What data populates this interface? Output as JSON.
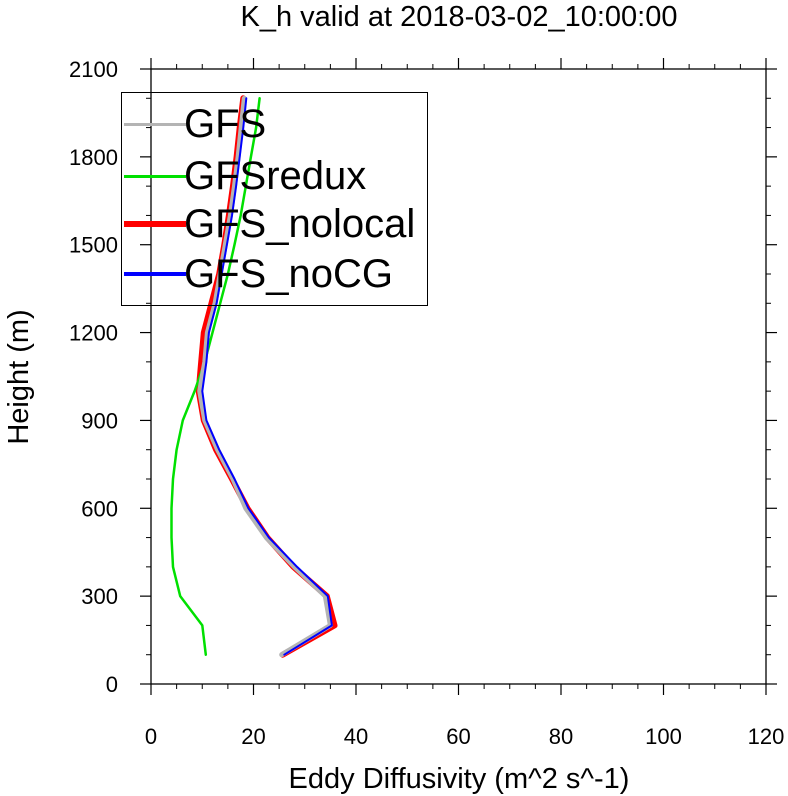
{
  "chart_data": {
    "type": "line",
    "title": "K_h valid at 2018-03-02_10:00:00",
    "xlabel": "Eddy Diffusivity (m^2 s^-1)",
    "ylabel": "Height (m)",
    "xlim": [
      0,
      120
    ],
    "ylim": [
      0,
      2100
    ],
    "xticks": [
      "0",
      "20",
      "40",
      "60",
      "80",
      "100",
      "120"
    ],
    "yticks": [
      "0",
      "300",
      "600",
      "900",
      "1200",
      "1500",
      "1800",
      "2100"
    ],
    "legend_position": "top-left",
    "series": [
      {
        "name": "GFS",
        "color": "#b4b4b4",
        "points": [
          [
            25.5,
            100
          ],
          [
            35,
            200
          ],
          [
            34,
            300
          ],
          [
            28,
            400
          ],
          [
            22.5,
            500
          ],
          [
            18.5,
            600
          ],
          [
            16,
            700
          ],
          [
            13,
            800
          ],
          [
            10.5,
            900
          ],
          [
            9.5,
            1000
          ],
          [
            10.5,
            1100
          ],
          [
            11,
            1200
          ],
          [
            12.5,
            1300
          ],
          [
            13.5,
            1400
          ],
          [
            14.5,
            1500
          ],
          [
            15.5,
            1600
          ],
          [
            16.3,
            1700
          ],
          [
            17,
            1800
          ],
          [
            17.6,
            1900
          ],
          [
            18.2,
            2000
          ]
        ]
      },
      {
        "name": "GFSredux",
        "color": "#00e000",
        "points": [
          [
            10.7,
            100
          ],
          [
            10,
            200
          ],
          [
            5.7,
            300
          ],
          [
            4.3,
            400
          ],
          [
            4,
            500
          ],
          [
            4,
            600
          ],
          [
            4.3,
            700
          ],
          [
            5,
            800
          ],
          [
            6.2,
            900
          ],
          [
            8.5,
            1000
          ],
          [
            10.5,
            1100
          ],
          [
            12,
            1200
          ],
          [
            13.5,
            1300
          ],
          [
            15,
            1400
          ],
          [
            16.3,
            1500
          ],
          [
            17.5,
            1600
          ],
          [
            18.5,
            1700
          ],
          [
            19.5,
            1800
          ],
          [
            20.5,
            1900
          ],
          [
            21.2,
            2000
          ]
        ]
      },
      {
        "name": "GFS_nolocal",
        "color": "#ff0000",
        "points": [
          [
            25.7,
            100
          ],
          [
            35.8,
            200
          ],
          [
            34.3,
            300
          ],
          [
            27.8,
            400
          ],
          [
            22.7,
            500
          ],
          [
            18.8,
            600
          ],
          [
            15.8,
            700
          ],
          [
            12.7,
            800
          ],
          [
            10.3,
            900
          ],
          [
            9.3,
            1000
          ],
          [
            9.8,
            1100
          ],
          [
            10.3,
            1200
          ],
          [
            11.8,
            1300
          ],
          [
            13.3,
            1400
          ],
          [
            14.3,
            1500
          ],
          [
            15.2,
            1600
          ],
          [
            16,
            1700
          ],
          [
            16.7,
            1800
          ],
          [
            17.3,
            1900
          ],
          [
            18,
            2000
          ]
        ]
      },
      {
        "name": "GFS_noCG",
        "color": "#0000ff",
        "points": [
          [
            26,
            100
          ],
          [
            35.3,
            200
          ],
          [
            34.5,
            300
          ],
          [
            28.5,
            400
          ],
          [
            23,
            500
          ],
          [
            19,
            600
          ],
          [
            16.3,
            700
          ],
          [
            13.3,
            800
          ],
          [
            10.8,
            900
          ],
          [
            10,
            1000
          ],
          [
            10.8,
            1100
          ],
          [
            11.3,
            1200
          ],
          [
            12.8,
            1300
          ],
          [
            13.8,
            1400
          ],
          [
            14.8,
            1500
          ],
          [
            15.8,
            1600
          ],
          [
            16.6,
            1700
          ],
          [
            17.3,
            1800
          ],
          [
            18,
            1900
          ],
          [
            18.6,
            2000
          ]
        ]
      }
    ]
  }
}
